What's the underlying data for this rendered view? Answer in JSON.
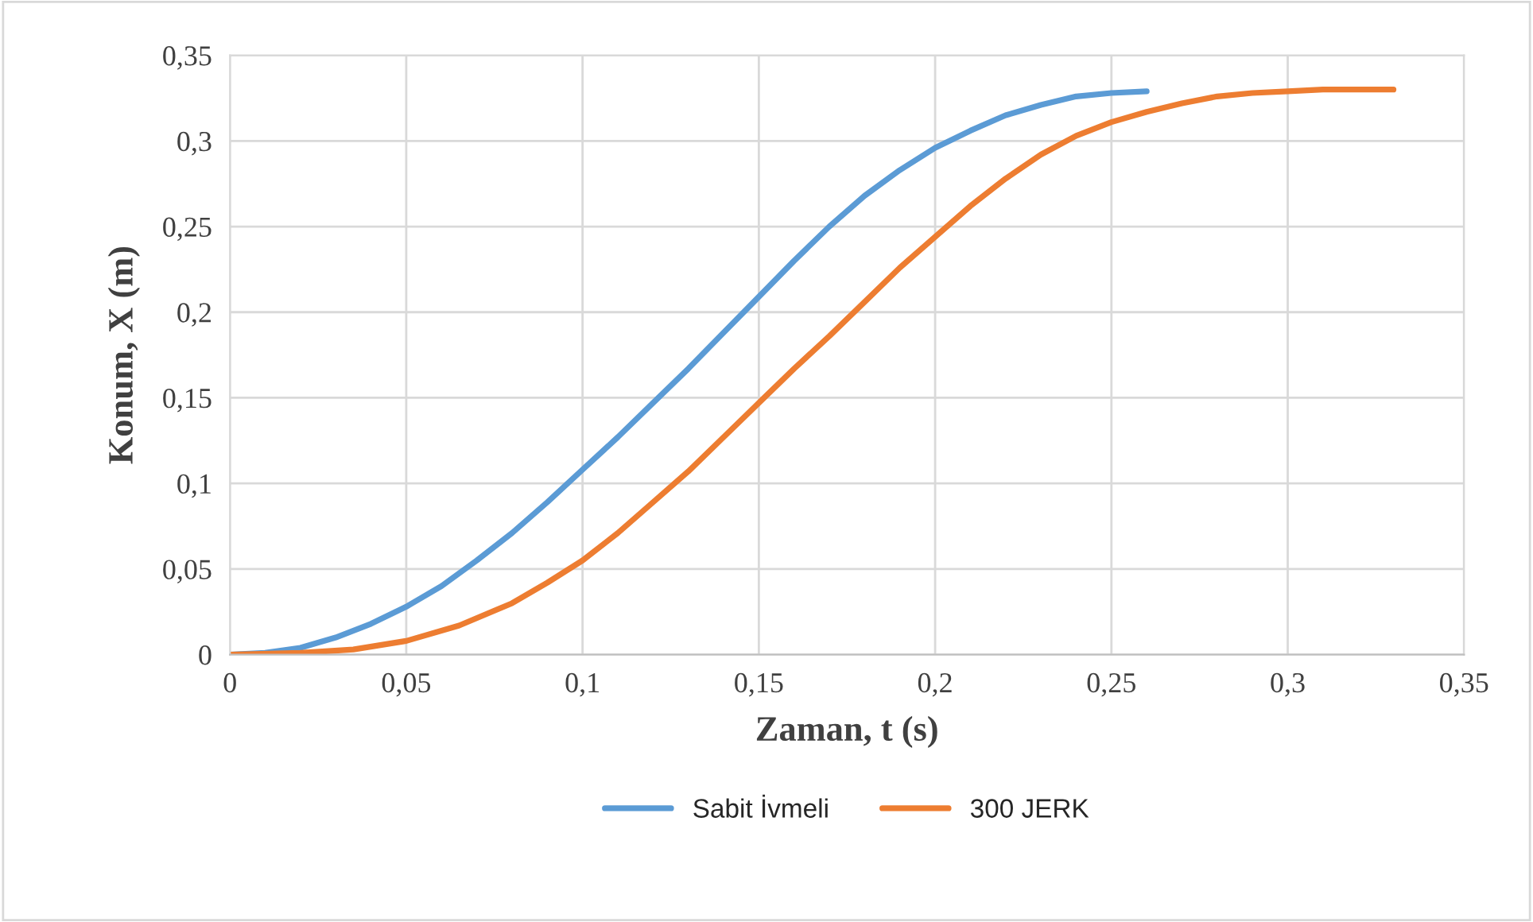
{
  "chart_data": {
    "type": "line",
    "xlabel": "Zaman, t (s)",
    "ylabel": "Konum, X (m)",
    "xlim": [
      0,
      0.35
    ],
    "ylim": [
      0,
      0.35
    ],
    "xticks": [
      0,
      {
        "value": 0.05,
        "label": "0,05"
      },
      {
        "value": 0.1,
        "label": "0,1"
      },
      {
        "value": 0.15,
        "label": "0,15"
      },
      {
        "value": 0.2,
        "label": "0,2"
      },
      {
        "value": 0.25,
        "label": "0,25"
      },
      {
        "value": 0.3,
        "label": "0,3"
      },
      {
        "value": 0.35,
        "label": "0,35"
      }
    ],
    "yticks": [
      0,
      {
        "value": 0.05,
        "label": "0,05"
      },
      {
        "value": 0.1,
        "label": "0,1"
      },
      {
        "value": 0.15,
        "label": "0,15"
      },
      {
        "value": 0.2,
        "label": "0,2"
      },
      {
        "value": 0.25,
        "label": "0,25"
      },
      {
        "value": 0.3,
        "label": "0,3"
      },
      {
        "value": 0.35,
        "label": "0,35"
      }
    ],
    "grid": true,
    "legend": "bottom",
    "marker": "none",
    "line_style": "solid",
    "series": [
      {
        "name": "Sabit İvmeli",
        "color": "#5b9bd5",
        "x": [
          0,
          0.01,
          0.02,
          0.03,
          0.04,
          0.05,
          0.06,
          0.07,
          0.08,
          0.09,
          0.1,
          0.11,
          0.12,
          0.13,
          0.14,
          0.15,
          0.16,
          0.17,
          0.18,
          0.19,
          0.2,
          0.21,
          0.22,
          0.23,
          0.24,
          0.25,
          0.26
        ],
        "values": [
          0,
          0.001,
          0.004,
          0.01,
          0.018,
          0.028,
          0.04,
          0.055,
          0.071,
          0.089,
          0.108,
          0.127,
          0.147,
          0.167,
          0.188,
          0.209,
          0.23,
          0.25,
          0.268,
          0.283,
          0.296,
          0.306,
          0.315,
          0.321,
          0.326,
          0.328,
          0.329
        ]
      },
      {
        "name": "300 JERK",
        "color": "#ed7d31",
        "x": [
          0,
          0.02,
          0.035,
          0.05,
          0.065,
          0.08,
          0.09,
          0.1,
          0.11,
          0.12,
          0.13,
          0.14,
          0.15,
          0.16,
          0.17,
          0.18,
          0.19,
          0.2,
          0.21,
          0.22,
          0.23,
          0.24,
          0.25,
          0.26,
          0.27,
          0.28,
          0.29,
          0.3,
          0.31,
          0.33
        ],
        "values": [
          0,
          0.001,
          0.003,
          0.008,
          0.017,
          0.03,
          0.042,
          0.055,
          0.071,
          0.089,
          0.107,
          0.127,
          0.147,
          0.167,
          0.186,
          0.206,
          0.226,
          0.244,
          0.262,
          0.278,
          0.292,
          0.303,
          0.311,
          0.317,
          0.322,
          0.326,
          0.328,
          0.329,
          0.33,
          0.33
        ]
      }
    ]
  }
}
